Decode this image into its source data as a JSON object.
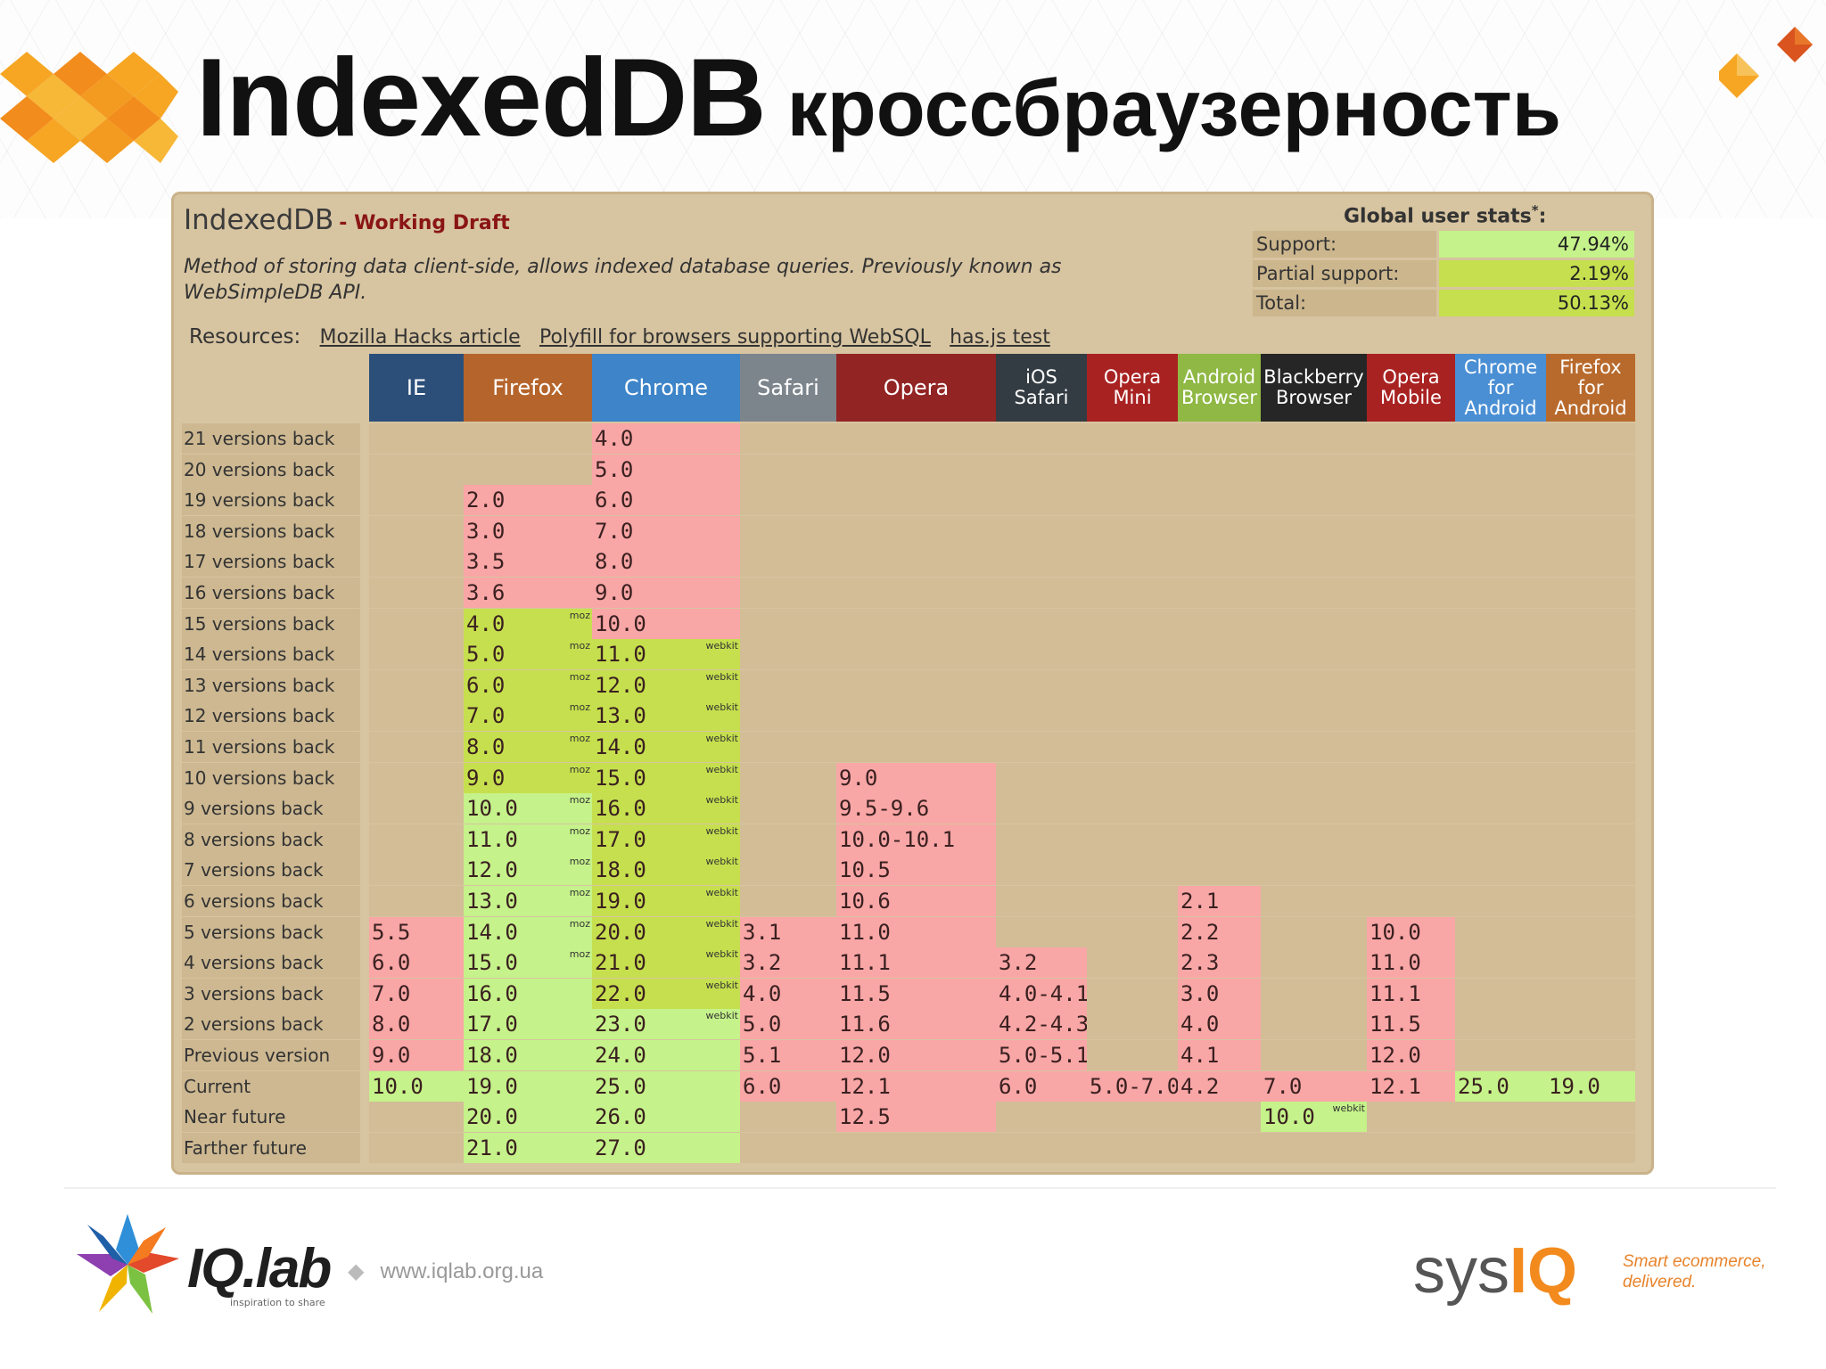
{
  "slide": {
    "title_main": "IndexedDB",
    "title_sub": "кроссбраузерность"
  },
  "panel": {
    "feature_name": "IndexedDB",
    "feature_status": "- Working Draft",
    "description": "Method of storing data client-side, allows indexed database queries. Previously known as WebSimpleDB API.",
    "resources_label": "Resources:",
    "resources": [
      "Mozilla Hacks article",
      "Polyfill for browsers supporting WebSQL",
      "has.js test"
    ]
  },
  "stats": {
    "title": "Global user stats",
    "title_mark": "*",
    "title_colon": ":",
    "rows": [
      {
        "label": "Support:",
        "value": "47.94%"
      },
      {
        "label": "Partial support:",
        "value": "2.19%"
      },
      {
        "label": "Total:",
        "value": "50.13%"
      }
    ]
  },
  "colors": {
    "supported": "#c5f28a",
    "partial": "#c6df4e",
    "unsupported": "#f9a6a6",
    "panel_bg": "#d7c4a0"
  },
  "browsers": [
    {
      "name": "IE",
      "color": "#2c4f7a"
    },
    {
      "name": "Firefox",
      "color": "#b5652c"
    },
    {
      "name": "Chrome",
      "color": "#3d84c8"
    },
    {
      "name": "Safari",
      "color": "#7d858c"
    },
    {
      "name": "Opera",
      "color": "#922424"
    },
    {
      "name": "iOS\nSafari",
      "color": "#333c42"
    },
    {
      "name": "Opera\nMini",
      "color": "#a92222"
    },
    {
      "name": "Android\nBrowser",
      "color": "#8fb844"
    },
    {
      "name": "Blackberry\nBrowser",
      "color": "#262626"
    },
    {
      "name": "Opera\nMobile",
      "color": "#a92222"
    },
    {
      "name": "Chrome\nfor\nAndroid",
      "color": "#4a8fd4"
    },
    {
      "name": "Firefox\nfor\nAndroid",
      "color": "#b86a2c"
    }
  ],
  "rows": [
    {
      "label": "21 versions back",
      "cells": [
        null,
        null,
        [
          "4.0",
          "n",
          ""
        ],
        null,
        null,
        null,
        null,
        null,
        null,
        null,
        null,
        null
      ]
    },
    {
      "label": "20 versions back",
      "cells": [
        null,
        null,
        [
          "5.0",
          "n",
          ""
        ],
        null,
        null,
        null,
        null,
        null,
        null,
        null,
        null,
        null
      ]
    },
    {
      "label": "19 versions back",
      "cells": [
        null,
        [
          "2.0",
          "n",
          ""
        ],
        [
          "6.0",
          "n",
          ""
        ],
        null,
        null,
        null,
        null,
        null,
        null,
        null,
        null,
        null
      ]
    },
    {
      "label": "18 versions back",
      "cells": [
        null,
        [
          "3.0",
          "n",
          ""
        ],
        [
          "7.0",
          "n",
          ""
        ],
        null,
        null,
        null,
        null,
        null,
        null,
        null,
        null,
        null
      ]
    },
    {
      "label": "17 versions back",
      "cells": [
        null,
        [
          "3.5",
          "n",
          ""
        ],
        [
          "8.0",
          "n",
          ""
        ],
        null,
        null,
        null,
        null,
        null,
        null,
        null,
        null,
        null
      ]
    },
    {
      "label": "16 versions back",
      "cells": [
        null,
        [
          "3.6",
          "n",
          ""
        ],
        [
          "9.0",
          "n",
          ""
        ],
        null,
        null,
        null,
        null,
        null,
        null,
        null,
        null,
        null
      ]
    },
    {
      "label": "15 versions back",
      "cells": [
        null,
        [
          "4.0",
          "p",
          "moz"
        ],
        [
          "10.0",
          "n",
          ""
        ],
        null,
        null,
        null,
        null,
        null,
        null,
        null,
        null,
        null
      ]
    },
    {
      "label": "14 versions back",
      "cells": [
        null,
        [
          "5.0",
          "p",
          "moz"
        ],
        [
          "11.0",
          "p",
          "webkit"
        ],
        null,
        null,
        null,
        null,
        null,
        null,
        null,
        null,
        null
      ]
    },
    {
      "label": "13 versions back",
      "cells": [
        null,
        [
          "6.0",
          "p",
          "moz"
        ],
        [
          "12.0",
          "p",
          "webkit"
        ],
        null,
        null,
        null,
        null,
        null,
        null,
        null,
        null,
        null
      ]
    },
    {
      "label": "12 versions back",
      "cells": [
        null,
        [
          "7.0",
          "p",
          "moz"
        ],
        [
          "13.0",
          "p",
          "webkit"
        ],
        null,
        null,
        null,
        null,
        null,
        null,
        null,
        null,
        null
      ]
    },
    {
      "label": "11 versions back",
      "cells": [
        null,
        [
          "8.0",
          "p",
          "moz"
        ],
        [
          "14.0",
          "p",
          "webkit"
        ],
        null,
        null,
        null,
        null,
        null,
        null,
        null,
        null,
        null
      ]
    },
    {
      "label": "10 versions back",
      "cells": [
        null,
        [
          "9.0",
          "p",
          "moz"
        ],
        [
          "15.0",
          "p",
          "webkit"
        ],
        null,
        [
          "9.0",
          "n",
          ""
        ],
        null,
        null,
        null,
        null,
        null,
        null,
        null
      ]
    },
    {
      "label": "9 versions back",
      "cells": [
        null,
        [
          "10.0",
          "y",
          "moz"
        ],
        [
          "16.0",
          "p",
          "webkit"
        ],
        null,
        [
          "9.5-9.6",
          "n",
          ""
        ],
        null,
        null,
        null,
        null,
        null,
        null,
        null
      ]
    },
    {
      "label": "8 versions back",
      "cells": [
        null,
        [
          "11.0",
          "y",
          "moz"
        ],
        [
          "17.0",
          "p",
          "webkit"
        ],
        null,
        [
          "10.0-10.1",
          "n",
          ""
        ],
        null,
        null,
        null,
        null,
        null,
        null,
        null
      ]
    },
    {
      "label": "7 versions back",
      "cells": [
        null,
        [
          "12.0",
          "y",
          "moz"
        ],
        [
          "18.0",
          "p",
          "webkit"
        ],
        null,
        [
          "10.5",
          "n",
          ""
        ],
        null,
        null,
        null,
        null,
        null,
        null,
        null
      ]
    },
    {
      "label": "6 versions back",
      "cells": [
        null,
        [
          "13.0",
          "y",
          "moz"
        ],
        [
          "19.0",
          "p",
          "webkit"
        ],
        null,
        [
          "10.6",
          "n",
          ""
        ],
        null,
        null,
        [
          "2.1",
          "n",
          ""
        ],
        null,
        null,
        null,
        null
      ]
    },
    {
      "label": "5 versions back",
      "cells": [
        [
          "5.5",
          "n",
          ""
        ],
        [
          "14.0",
          "y",
          "moz"
        ],
        [
          "20.0",
          "p",
          "webkit"
        ],
        [
          "3.1",
          "n",
          ""
        ],
        [
          "11.0",
          "n",
          ""
        ],
        null,
        null,
        [
          "2.2",
          "n",
          ""
        ],
        null,
        [
          "10.0",
          "n",
          ""
        ],
        null,
        null
      ]
    },
    {
      "label": "4 versions back",
      "cells": [
        [
          "6.0",
          "n",
          ""
        ],
        [
          "15.0",
          "y",
          "moz"
        ],
        [
          "21.0",
          "p",
          "webkit"
        ],
        [
          "3.2",
          "n",
          ""
        ],
        [
          "11.1",
          "n",
          ""
        ],
        [
          "3.2",
          "n",
          ""
        ],
        null,
        [
          "2.3",
          "n",
          ""
        ],
        null,
        [
          "11.0",
          "n",
          ""
        ],
        null,
        null
      ]
    },
    {
      "label": "3 versions back",
      "cells": [
        [
          "7.0",
          "n",
          ""
        ],
        [
          "16.0",
          "y",
          ""
        ],
        [
          "22.0",
          "p",
          "webkit"
        ],
        [
          "4.0",
          "n",
          ""
        ],
        [
          "11.5",
          "n",
          ""
        ],
        [
          "4.0-4.1",
          "n",
          ""
        ],
        null,
        [
          "3.0",
          "n",
          ""
        ],
        null,
        [
          "11.1",
          "n",
          ""
        ],
        null,
        null
      ]
    },
    {
      "label": "2 versions back",
      "cells": [
        [
          "8.0",
          "n",
          ""
        ],
        [
          "17.0",
          "y",
          ""
        ],
        [
          "23.0",
          "y",
          "webkit"
        ],
        [
          "5.0",
          "n",
          ""
        ],
        [
          "11.6",
          "n",
          ""
        ],
        [
          "4.2-4.3",
          "n",
          ""
        ],
        null,
        [
          "4.0",
          "n",
          ""
        ],
        null,
        [
          "11.5",
          "n",
          ""
        ],
        null,
        null
      ]
    },
    {
      "label": "Previous version",
      "cells": [
        [
          "9.0",
          "n",
          ""
        ],
        [
          "18.0",
          "y",
          ""
        ],
        [
          "24.0",
          "y",
          ""
        ],
        [
          "5.1",
          "n",
          ""
        ],
        [
          "12.0",
          "n",
          ""
        ],
        [
          "5.0-5.1",
          "n",
          ""
        ],
        null,
        [
          "4.1",
          "n",
          ""
        ],
        null,
        [
          "12.0",
          "n",
          ""
        ],
        null,
        null
      ]
    },
    {
      "label": "Current",
      "cells": [
        [
          "10.0",
          "y",
          ""
        ],
        [
          "19.0",
          "y",
          ""
        ],
        [
          "25.0",
          "y",
          ""
        ],
        [
          "6.0",
          "n",
          ""
        ],
        [
          "12.1",
          "n",
          ""
        ],
        [
          "6.0",
          "n",
          ""
        ],
        [
          "5.0-7.0",
          "n",
          ""
        ],
        [
          "4.2",
          "n",
          ""
        ],
        [
          "7.0",
          "n",
          ""
        ],
        [
          "12.1",
          "n",
          ""
        ],
        [
          "25.0",
          "y",
          ""
        ],
        [
          "19.0",
          "y",
          ""
        ]
      ]
    },
    {
      "label": "Near future",
      "cells": [
        null,
        [
          "20.0",
          "y",
          ""
        ],
        [
          "26.0",
          "y",
          ""
        ],
        null,
        [
          "12.5",
          "n",
          ""
        ],
        null,
        null,
        null,
        [
          "10.0",
          "y",
          "webkit"
        ],
        null,
        null,
        null
      ]
    },
    {
      "label": "Farther future",
      "cells": [
        null,
        [
          "21.0",
          "y",
          ""
        ],
        [
          "27.0",
          "y",
          ""
        ],
        null,
        null,
        null,
        null,
        null,
        null,
        null,
        null,
        null
      ]
    }
  ],
  "footer": {
    "iq_logo": "IQ.lab",
    "iq_tagline": "inspiration to share",
    "iq_url": "www.iqlab.org.ua",
    "sysiq_prefix": "sys",
    "sysiq_suffix": "IQ",
    "sysiq_tagline": "Smart ecommerce, delivered."
  }
}
